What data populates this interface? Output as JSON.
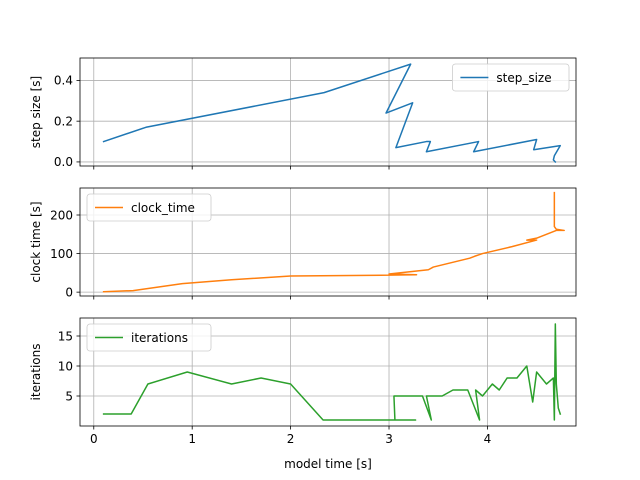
{
  "chart_data": {
    "type": "line",
    "shared_x_label": "model time [s]",
    "x_ticks": [
      0,
      1,
      2,
      3,
      4
    ],
    "xlim": [
      -0.14,
      4.9
    ],
    "grid": true,
    "panels": [
      {
        "ylabel": "step size [s]",
        "ylim": [
          -0.02,
          0.51
        ],
        "y_ticks": [
          0.0,
          0.2,
          0.4
        ],
        "y_tick_labels": [
          "0.0",
          "0.2",
          "0.4"
        ],
        "legend_position": "top-right",
        "series": [
          {
            "name": "step_size",
            "color": "#1f77b4",
            "x": [
              0.1,
              0.53,
              2.34,
              3.22,
              2.97,
              3.24,
              3.07,
              3.38,
              3.42,
              3.38,
              3.91,
              3.86,
              4.5,
              4.47,
              4.74,
              4.68,
              4.67,
              4.69
            ],
            "y": [
              0.1,
              0.17,
              0.34,
              0.48,
              0.24,
              0.29,
              0.07,
              0.1,
              0.1,
              0.05,
              0.1,
              0.05,
              0.11,
              0.06,
              0.08,
              0.03,
              0.01,
              0.0
            ]
          }
        ]
      },
      {
        "ylabel": "clock time [s]",
        "ylim": [
          -10,
          270
        ],
        "y_ticks": [
          0,
          100,
          200
        ],
        "y_tick_labels": [
          "0",
          "100",
          "200"
        ],
        "legend_position": "top-left",
        "series": [
          {
            "name": "clock_time",
            "color": "#ff7f0e",
            "x": [
              0.1,
              0.4,
              0.9,
              1.4,
              2.0,
              3.0,
              3.28,
              3.0,
              3.4,
              3.45,
              3.82,
              3.87,
              3.95,
              4.25,
              4.5,
              4.4,
              4.5,
              4.7,
              4.78,
              4.7,
              4.68,
              4.68
            ],
            "y": [
              1,
              4,
              22,
              32,
              42,
              44,
              45,
              47,
              58,
              65,
              88,
              93,
              100,
              118,
              135,
              135,
              140,
              160,
              160,
              163,
              170,
              258
            ]
          }
        ]
      },
      {
        "ylabel": "iterations",
        "ylim": [
          0,
          18
        ],
        "y_ticks": [
          5,
          10,
          15
        ],
        "y_tick_labels": [
          "5",
          "10",
          "15"
        ],
        "legend_position": "top-left",
        "series": [
          {
            "name": "iterations",
            "color": "#2ca02c",
            "x": [
              0.1,
              0.38,
              0.55,
              0.95,
              1.4,
              1.7,
              2.0,
              2.33,
              3.27,
              3.06,
              3.05,
              3.34,
              3.43,
              3.38,
              3.54,
              3.65,
              3.8,
              3.92,
              3.88,
              3.95,
              4.05,
              4.12,
              4.2,
              4.3,
              4.4,
              4.46,
              4.5,
              4.6,
              4.67,
              4.68,
              4.69,
              4.7,
              4.72,
              4.74
            ],
            "y": [
              2,
              2,
              7,
              9,
              7,
              8,
              7,
              1,
              1,
              1,
              5,
              5,
              1,
              5,
              5,
              6,
              6,
              1,
              6,
              5,
              7,
              6,
              8,
              8,
              10,
              4,
              9,
              7,
              8,
              1,
              17,
              7,
              3,
              2
            ]
          }
        ]
      }
    ]
  }
}
